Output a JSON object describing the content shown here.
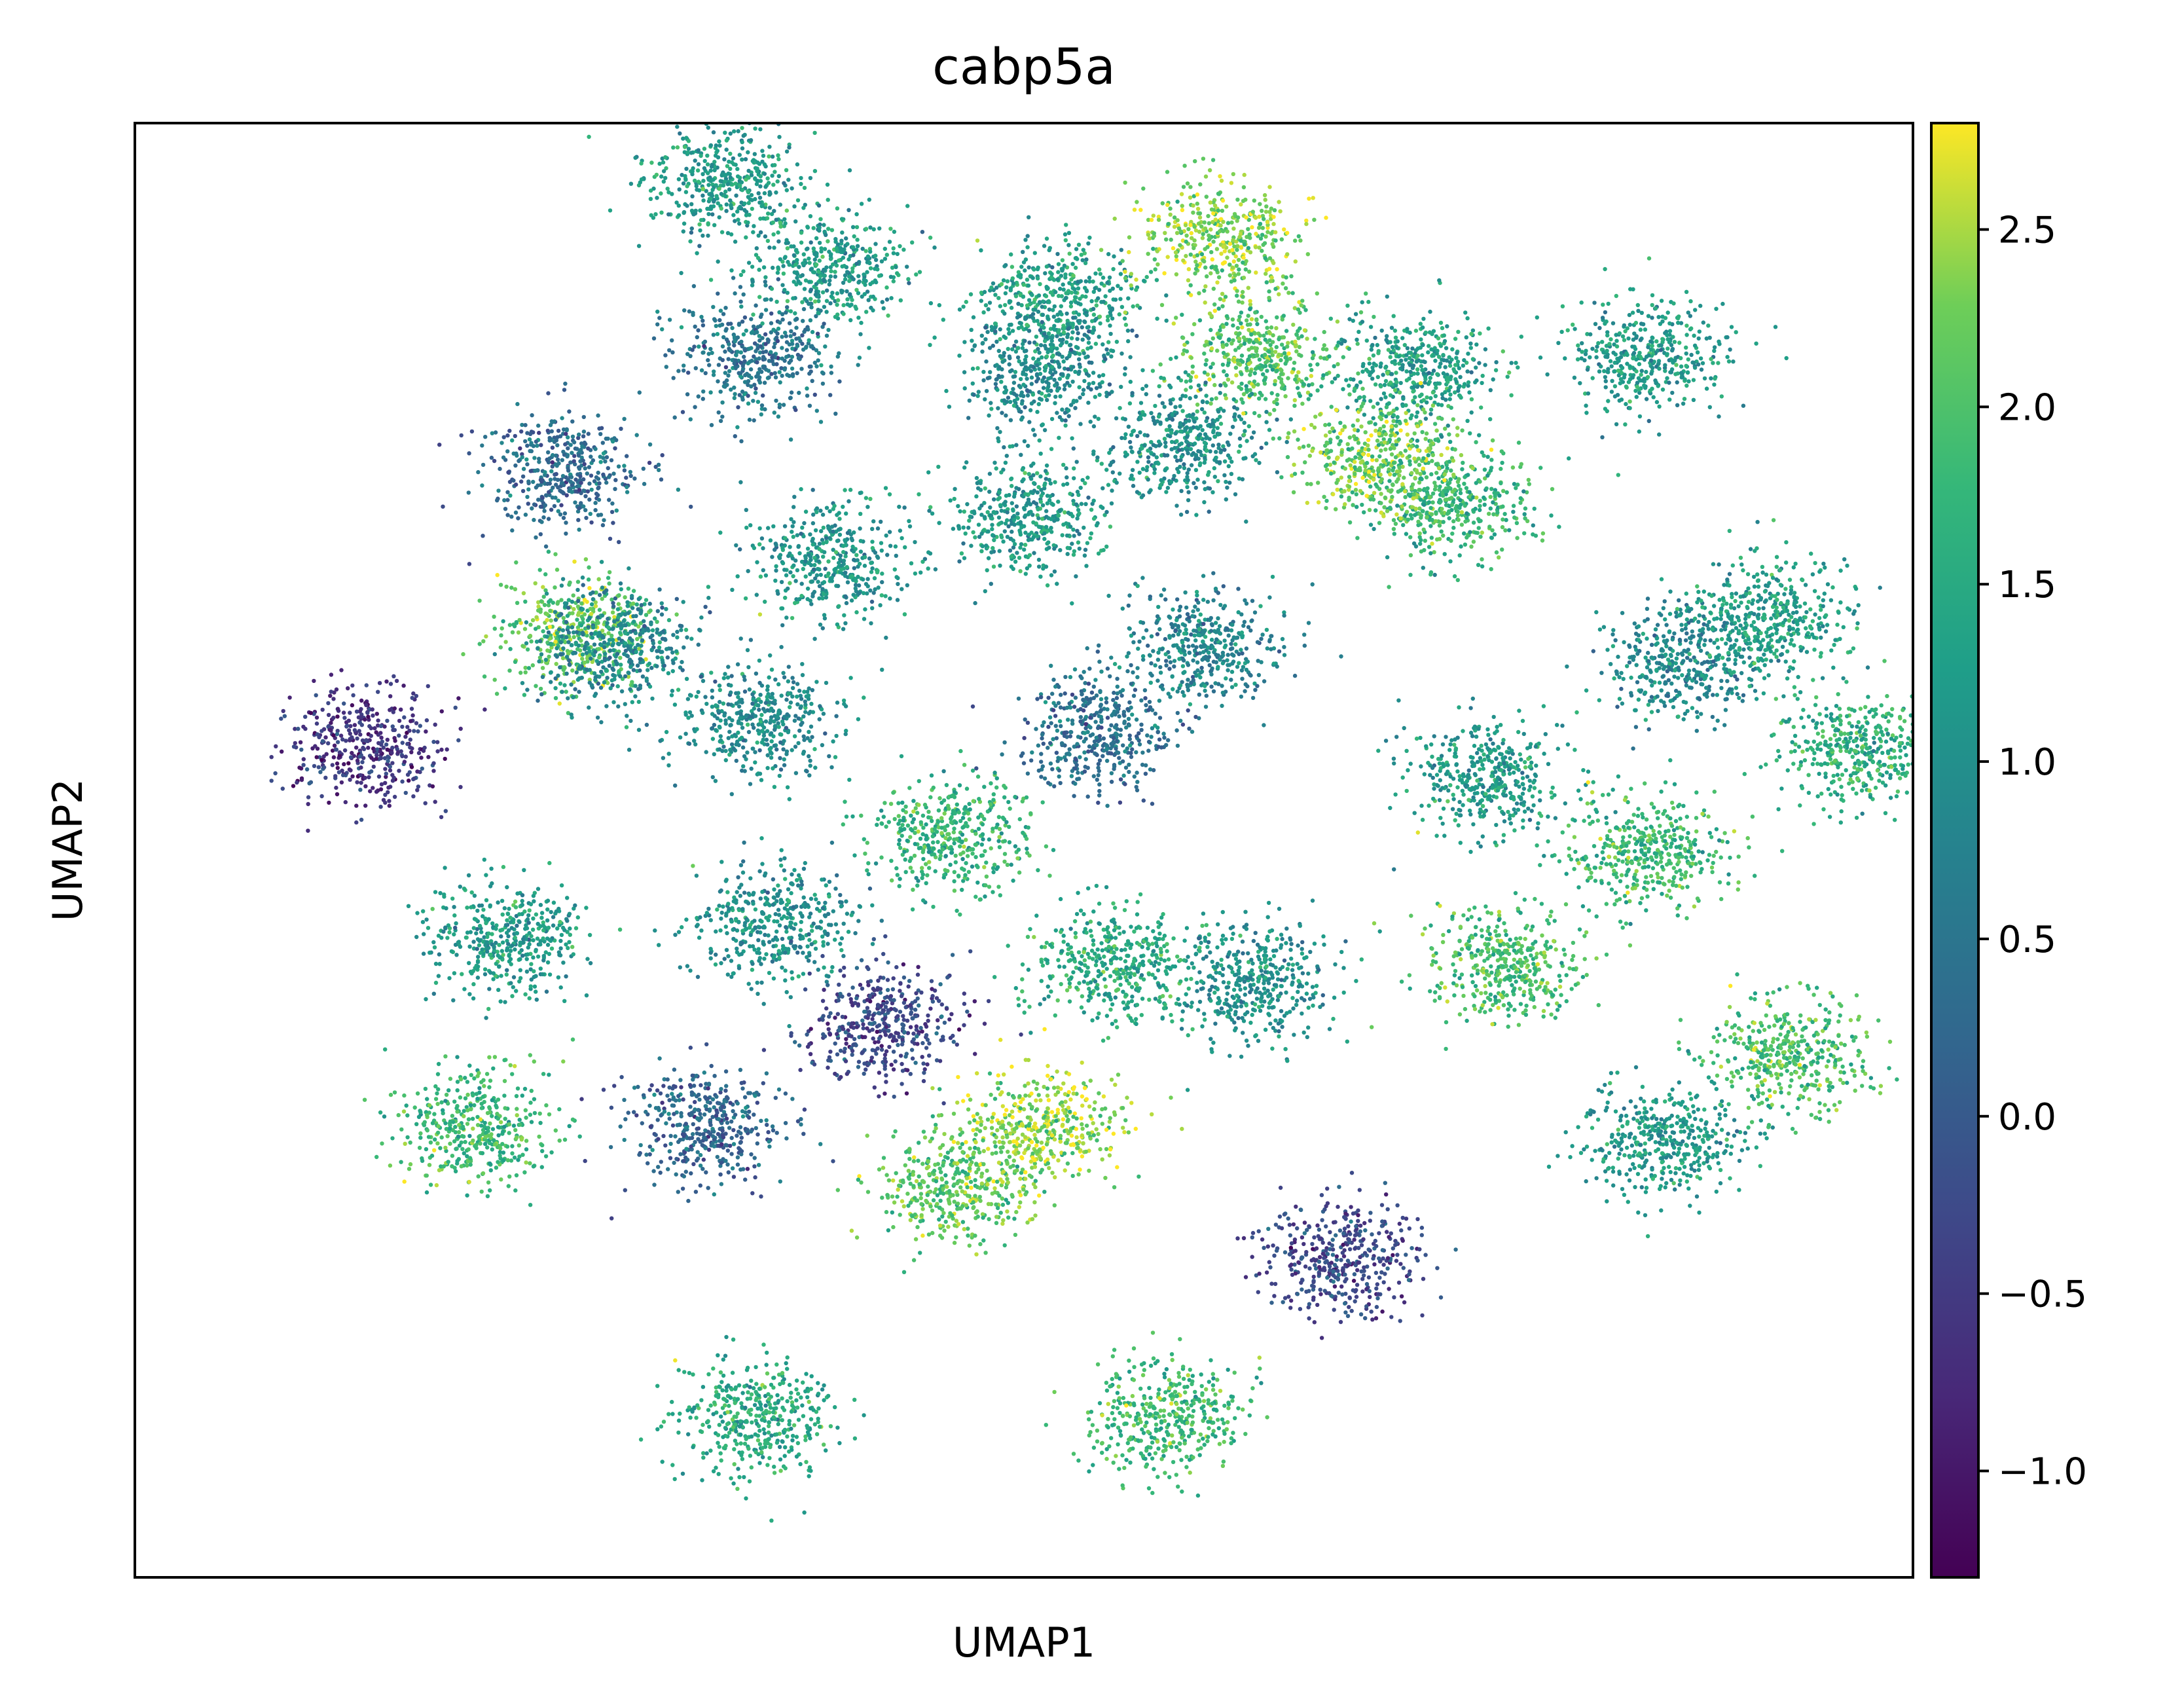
{
  "chart_data": {
    "type": "scatter",
    "title": "cabp5a",
    "xlabel": "UMAP1",
    "ylabel": "UMAP2",
    "x_ticks_shown": false,
    "y_ticks_shown": false,
    "grid": false,
    "point_size": "small",
    "colorbar": {
      "colormap": "viridis",
      "range": [
        -1.3,
        2.8
      ],
      "ticks": [
        -1.0,
        -0.5,
        0.0,
        0.5,
        1.0,
        1.5,
        2.0,
        2.5
      ],
      "tick_labels": [
        "−1.0",
        "−0.5",
        "0.0",
        "0.5",
        "1.0",
        "1.5",
        "2.0",
        "2.5"
      ],
      "position": "right"
    },
    "clusters": [
      {
        "id": "c01",
        "x": 0.33,
        "y": 0.96,
        "value": 1.2
      },
      {
        "id": "c02",
        "x": 0.39,
        "y": 0.9,
        "value": 1.2
      },
      {
        "id": "c03",
        "x": 0.35,
        "y": 0.84,
        "value": 0.5
      },
      {
        "id": "c04",
        "x": 0.52,
        "y": 0.88,
        "value": 1.3
      },
      {
        "id": "c05",
        "x": 0.51,
        "y": 0.83,
        "value": 0.9
      },
      {
        "id": "c06",
        "x": 0.61,
        "y": 0.92,
        "value": 2.3
      },
      {
        "id": "c07",
        "x": 0.63,
        "y": 0.84,
        "value": 2.0
      },
      {
        "id": "c08",
        "x": 0.59,
        "y": 0.78,
        "value": 1.0
      },
      {
        "id": "c09",
        "x": 0.24,
        "y": 0.76,
        "value": 0.3
      },
      {
        "id": "c10",
        "x": 0.39,
        "y": 0.7,
        "value": 1.1
      },
      {
        "id": "c11",
        "x": 0.5,
        "y": 0.73,
        "value": 1.2
      },
      {
        "id": "c12",
        "x": 0.85,
        "y": 0.84,
        "value": 1.2
      },
      {
        "id": "c13",
        "x": 0.72,
        "y": 0.83,
        "value": 1.3
      },
      {
        "id": "c14",
        "x": 0.74,
        "y": 0.74,
        "value": 1.7
      },
      {
        "id": "c15",
        "x": 0.7,
        "y": 0.77,
        "value": 2.2
      },
      {
        "id": "c16",
        "x": 0.25,
        "y": 0.65,
        "value": 2.1
      },
      {
        "id": "c17",
        "x": 0.27,
        "y": 0.64,
        "value": 0.8
      },
      {
        "id": "c18",
        "x": 0.35,
        "y": 0.59,
        "value": 0.9
      },
      {
        "id": "c19",
        "x": 0.13,
        "y": 0.57,
        "value": -0.6
      },
      {
        "id": "c20",
        "x": 0.6,
        "y": 0.64,
        "value": 0.8
      },
      {
        "id": "c21",
        "x": 0.54,
        "y": 0.58,
        "value": 0.4
      },
      {
        "id": "c22",
        "x": 0.76,
        "y": 0.55,
        "value": 1.2
      },
      {
        "id": "c23",
        "x": 0.87,
        "y": 0.63,
        "value": 0.9
      },
      {
        "id": "c24",
        "x": 0.92,
        "y": 0.66,
        "value": 1.3
      },
      {
        "id": "c25",
        "x": 0.97,
        "y": 0.57,
        "value": 1.6
      },
      {
        "id": "c26",
        "x": 0.85,
        "y": 0.5,
        "value": 1.8
      },
      {
        "id": "c27",
        "x": 0.46,
        "y": 0.51,
        "value": 1.7
      },
      {
        "id": "c28",
        "x": 0.21,
        "y": 0.44,
        "value": 1.2
      },
      {
        "id": "c29",
        "x": 0.36,
        "y": 0.45,
        "value": 1.0
      },
      {
        "id": "c30",
        "x": 0.63,
        "y": 0.41,
        "value": 1.0
      },
      {
        "id": "c31",
        "x": 0.55,
        "y": 0.42,
        "value": 1.5
      },
      {
        "id": "c32",
        "x": 0.77,
        "y": 0.42,
        "value": 1.9
      },
      {
        "id": "c33",
        "x": 0.42,
        "y": 0.38,
        "value": -0.3
      },
      {
        "id": "c34",
        "x": 0.32,
        "y": 0.31,
        "value": 0.2
      },
      {
        "id": "c35",
        "x": 0.19,
        "y": 0.31,
        "value": 1.8
      },
      {
        "id": "c36",
        "x": 0.46,
        "y": 0.27,
        "value": 2.1
      },
      {
        "id": "c37",
        "x": 0.51,
        "y": 0.31,
        "value": 2.4
      },
      {
        "id": "c38",
        "x": 0.86,
        "y": 0.3,
        "value": 1.2
      },
      {
        "id": "c39",
        "x": 0.93,
        "y": 0.36,
        "value": 1.9
      },
      {
        "id": "c40",
        "x": 0.68,
        "y": 0.22,
        "value": -0.3
      },
      {
        "id": "c41",
        "x": 0.35,
        "y": 0.11,
        "value": 1.5
      },
      {
        "id": "c42",
        "x": 0.58,
        "y": 0.11,
        "value": 1.8
      }
    ]
  }
}
